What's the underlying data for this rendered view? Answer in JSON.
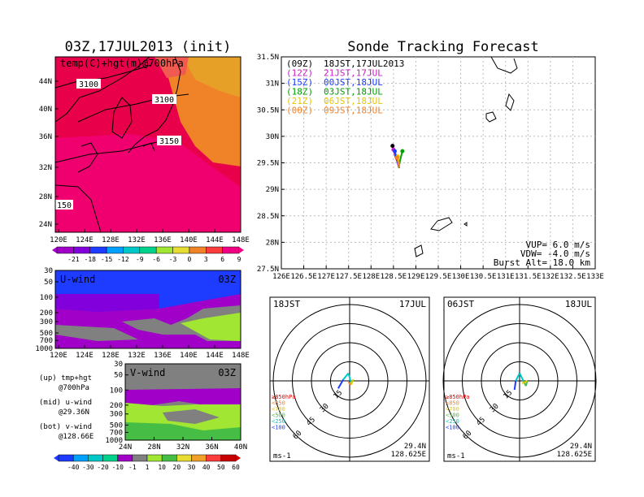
{
  "left_title": "03Z,17JUL2013 (init)",
  "right_title": "Sonde Tracking Forecast",
  "temp_map": {
    "label": "temp(C)+hgt(m)@700hPa",
    "lat_ticks": [
      "44N",
      "40N",
      "36N",
      "32N",
      "28N",
      "24N"
    ],
    "lon_ticks": [
      "120E",
      "124E",
      "128E",
      "132E",
      "136E",
      "140E",
      "144E",
      "148E"
    ],
    "contours": [
      "3100",
      "3100",
      "3150",
      "150"
    ],
    "colorbar_labels": [
      "-21",
      "-18",
      "-15",
      "-12",
      "-9",
      "-6",
      "-3",
      "0",
      "3",
      "6",
      "9"
    ],
    "colorbar_colors": [
      "#a000c8",
      "#8200dc",
      "#1e3cff",
      "#00a0ff",
      "#00c8c8",
      "#00d28c",
      "#a0e632",
      "#e6dc32",
      "#f08228",
      "#fa3c3c",
      "#f00082"
    ]
  },
  "u_wind": {
    "label": "U-wind",
    "time": "03Z",
    "p_ticks": [
      "30",
      "50",
      "100",
      "200",
      "300",
      "500",
      "700",
      "1000"
    ],
    "lon_ticks": [
      "120E",
      "124E",
      "128E",
      "132E",
      "136E",
      "140E",
      "144E",
      "148E"
    ]
  },
  "v_wind": {
    "label": "V-wind",
    "time": "03Z",
    "p_ticks": [
      "30",
      "50",
      "100",
      "200",
      "300",
      "500",
      "700",
      "1000"
    ],
    "lat_ticks": [
      "24N",
      "28N",
      "32N",
      "36N",
      "40N"
    ]
  },
  "side_notes": [
    {
      "line1": "(up) tmp+hgt",
      "line2": "@700hPa"
    },
    {
      "line1": "(mid) u-wind",
      "line2": "@29.36N"
    },
    {
      "line1": "(bot) v-wind",
      "line2": "@128.66E"
    }
  ],
  "wind_colorbar": {
    "labels": [
      "-40",
      "-30",
      "-20",
      "-10",
      "-1",
      "1",
      "10",
      "20",
      "30",
      "40",
      "50",
      "60"
    ],
    "colors": [
      "#1e3cff",
      "#00a0ff",
      "#00c8c8",
      "#00d28c",
      "#a000c8",
      "#808080",
      "#a0e632",
      "#46be46",
      "#e6dc32",
      "#f0a028",
      "#fa3c3c",
      "#c80000"
    ]
  },
  "track_map": {
    "lat_ticks": [
      "31.5N",
      "31N",
      "30.5N",
      "30N",
      "29.5N",
      "29N",
      "28.5N",
      "28N",
      "27.5N"
    ],
    "lon_ticks": [
      "126E",
      "126.5E",
      "127E",
      "127.5E",
      "128E",
      "128.5E",
      "129E",
      "129.5E",
      "130E",
      "130.5E",
      "131E",
      "131.5E",
      "132E",
      "132.5E",
      "133E"
    ],
    "launch": {
      "lon": 128.625,
      "lat": 29.4
    },
    "legend": [
      {
        "code": "(09Z)",
        "time": "18JST,17JUL2013",
        "color": "#000000"
      },
      {
        "code": "(12Z)",
        "time": "21JST,17JUL",
        "color": "#c81ec8"
      },
      {
        "code": "(15Z)",
        "time": "00JST,18JUL",
        "color": "#1e3cff"
      },
      {
        "code": "(18Z)",
        "time": "03JST,18JUL",
        "color": "#00a000"
      },
      {
        "code": "(21Z)",
        "time": "06JST,18JUL",
        "color": "#e6c800"
      },
      {
        "code": "(00Z)",
        "time": "09JST,18JUL",
        "color": "#f08228"
      }
    ],
    "tracks": [
      {
        "color": "#000000",
        "points": [
          [
            128.48,
            29.82
          ],
          [
            128.55,
            29.6
          ],
          [
            128.6,
            29.5
          ],
          [
            128.62,
            29.42
          ]
        ]
      },
      {
        "color": "#c81ec8",
        "points": [
          [
            128.5,
            29.75
          ],
          [
            128.56,
            29.58
          ],
          [
            128.6,
            29.48
          ],
          [
            128.62,
            29.41
          ]
        ]
      },
      {
        "color": "#1e3cff",
        "points": [
          [
            128.53,
            29.72
          ],
          [
            128.58,
            29.56
          ],
          [
            128.61,
            29.47
          ],
          [
            128.63,
            29.4
          ]
        ]
      },
      {
        "color": "#00a000",
        "points": [
          [
            128.7,
            29.72
          ],
          [
            128.65,
            29.55
          ],
          [
            128.63,
            29.46
          ],
          [
            128.63,
            29.4
          ]
        ]
      },
      {
        "color": "#e6c800",
        "points": [
          [
            128.6,
            29.62
          ],
          [
            128.62,
            29.5
          ],
          [
            128.63,
            29.42
          ]
        ]
      },
      {
        "color": "#f08228",
        "points": [
          [
            128.58,
            29.6
          ],
          [
            128.61,
            29.49
          ],
          [
            128.63,
            29.41
          ]
        ]
      }
    ],
    "vup": "VUP= 6.0 m/s",
    "vdw": "VDW= -4.0 m/s",
    "burst": "Burst Alt= 18.0 km"
  },
  "hodographs": [
    {
      "time": "18JST",
      "date": "17JUL",
      "lat": "29.4N",
      "lon": "128.625E",
      "units": "ms-1",
      "ring_labels": [
        "15",
        "30",
        "45",
        "60"
      ],
      "levels": [
        "≥850hPa",
        "<850",
        "<700",
        "<500",
        "<250",
        "<100"
      ],
      "level_colors": [
        "#e60000",
        "#f08228",
        "#e6c800",
        "#46be46",
        "#00c8c8",
        "#1e3cff"
      ],
      "segments": [
        {
          "color": "#1e3cff",
          "from": [
            -9,
            -6
          ],
          "to": [
            -5,
            1
          ]
        },
        {
          "color": "#00c8c8",
          "from": [
            -5,
            1
          ],
          "to": [
            -1,
            6
          ]
        },
        {
          "color": "#00c8c8",
          "from": [
            -1,
            6
          ],
          "to": [
            1,
            -1
          ]
        },
        {
          "color": "#46be46",
          "from": [
            1,
            -1
          ],
          "to": [
            3,
            1
          ]
        },
        {
          "color": "#e6c800",
          "from": [
            3,
            1
          ],
          "to": [
            1,
            -3
          ]
        },
        {
          "color": "#f08228",
          "from": [
            1,
            -3
          ],
          "to": [
            -1,
            -1
          ]
        }
      ]
    },
    {
      "time": "06JST",
      "date": "18JUL",
      "lat": "29.4N",
      "lon": "128.625E",
      "units": "ms-1",
      "ring_labels": [
        "15",
        "30",
        "45",
        "60"
      ],
      "levels": [
        "≥850hPa",
        "<850",
        "<700",
        "<500",
        "<250",
        "<100"
      ],
      "level_colors": [
        "#e60000",
        "#f08228",
        "#e6c800",
        "#46be46",
        "#00c8c8",
        "#1e3cff"
      ],
      "segments": [
        {
          "color": "#1e3cff",
          "from": [
            -4,
            -7
          ],
          "to": [
            -3,
            0
          ]
        },
        {
          "color": "#00c8c8",
          "from": [
            -3,
            0
          ],
          "to": [
            0,
            6
          ]
        },
        {
          "color": "#00c8c8",
          "from": [
            0,
            6
          ],
          "to": [
            3,
            0
          ]
        },
        {
          "color": "#46be46",
          "from": [
            3,
            0
          ],
          "to": [
            5,
            -4
          ]
        },
        {
          "color": "#46be46",
          "from": [
            5,
            -4
          ],
          "to": [
            6,
            0
          ]
        },
        {
          "color": "#e6c800",
          "from": [
            6,
            0
          ],
          "to": [
            2,
            -2
          ]
        }
      ]
    }
  ],
  "chart_data": [
    {
      "type": "heatmap",
      "title": "03Z,17JUL2013 (init)",
      "subtitle": "temp(C)+hgt(m)@700hPa",
      "xrange": [
        "120E",
        "148E"
      ],
      "yrange": [
        "24N",
        "44N"
      ],
      "contour_labels": [
        "3100",
        "3100",
        "3150",
        "150"
      ],
      "colorbar": [
        "-21",
        "-18",
        "-15",
        "-12",
        "-9",
        "-6",
        "-3",
        "0",
        "3",
        "6",
        "9"
      ]
    },
    {
      "type": "heatmap",
      "title": "U-wind",
      "xrange": [
        "120E",
        "148E"
      ],
      "y_pressure_hPa": [
        "30",
        "50",
        "100",
        "200",
        "300",
        "500",
        "700",
        "1000"
      ]
    },
    {
      "type": "heatmap",
      "title": "V-wind",
      "xrange": [
        "24N",
        "40N"
      ],
      "y_pressure_hPa": [
        "30",
        "50",
        "100",
        "200",
        "300",
        "500",
        "700",
        "1000"
      ]
    },
    {
      "type": "line",
      "title": "Sonde Tracking Forecast",
      "xlim": [
        126,
        133
      ],
      "ylim": [
        27.5,
        31.5
      ],
      "series": [
        {
          "name": "(09Z) 18JST,17JUL2013",
          "x": [
            128.48,
            128.55,
            128.6,
            128.62
          ],
          "y": [
            29.82,
            29.6,
            29.5,
            29.42
          ]
        },
        {
          "name": "(12Z) 21JST,17JUL",
          "x": [
            128.5,
            128.56,
            128.6,
            128.62
          ],
          "y": [
            29.75,
            29.58,
            29.48,
            29.41
          ]
        },
        {
          "name": "(15Z) 00JST,18JUL",
          "x": [
            128.53,
            128.58,
            128.61,
            128.63
          ],
          "y": [
            29.72,
            29.56,
            29.47,
            29.4
          ]
        },
        {
          "name": "(18Z) 03JST,18JUL",
          "x": [
            128.7,
            128.65,
            128.63,
            128.63
          ],
          "y": [
            29.72,
            29.55,
            29.46,
            29.4
          ]
        },
        {
          "name": "(21Z) 06JST,18JUL",
          "x": [
            128.6,
            128.62,
            128.63
          ],
          "y": [
            29.62,
            29.5,
            29.42
          ]
        },
        {
          "name": "(00Z) 09JST,18JUL",
          "x": [
            128.58,
            128.61,
            128.63
          ],
          "y": [
            29.6,
            29.49,
            29.41
          ]
        }
      ]
    },
    {
      "type": "line",
      "title": "18JST 17JUL",
      "ring_labels": [
        "15",
        "30",
        "45",
        "60"
      ]
    },
    {
      "type": "line",
      "title": "06JST 18JUL",
      "ring_labels": [
        "15",
        "30",
        "45",
        "60"
      ]
    }
  ]
}
